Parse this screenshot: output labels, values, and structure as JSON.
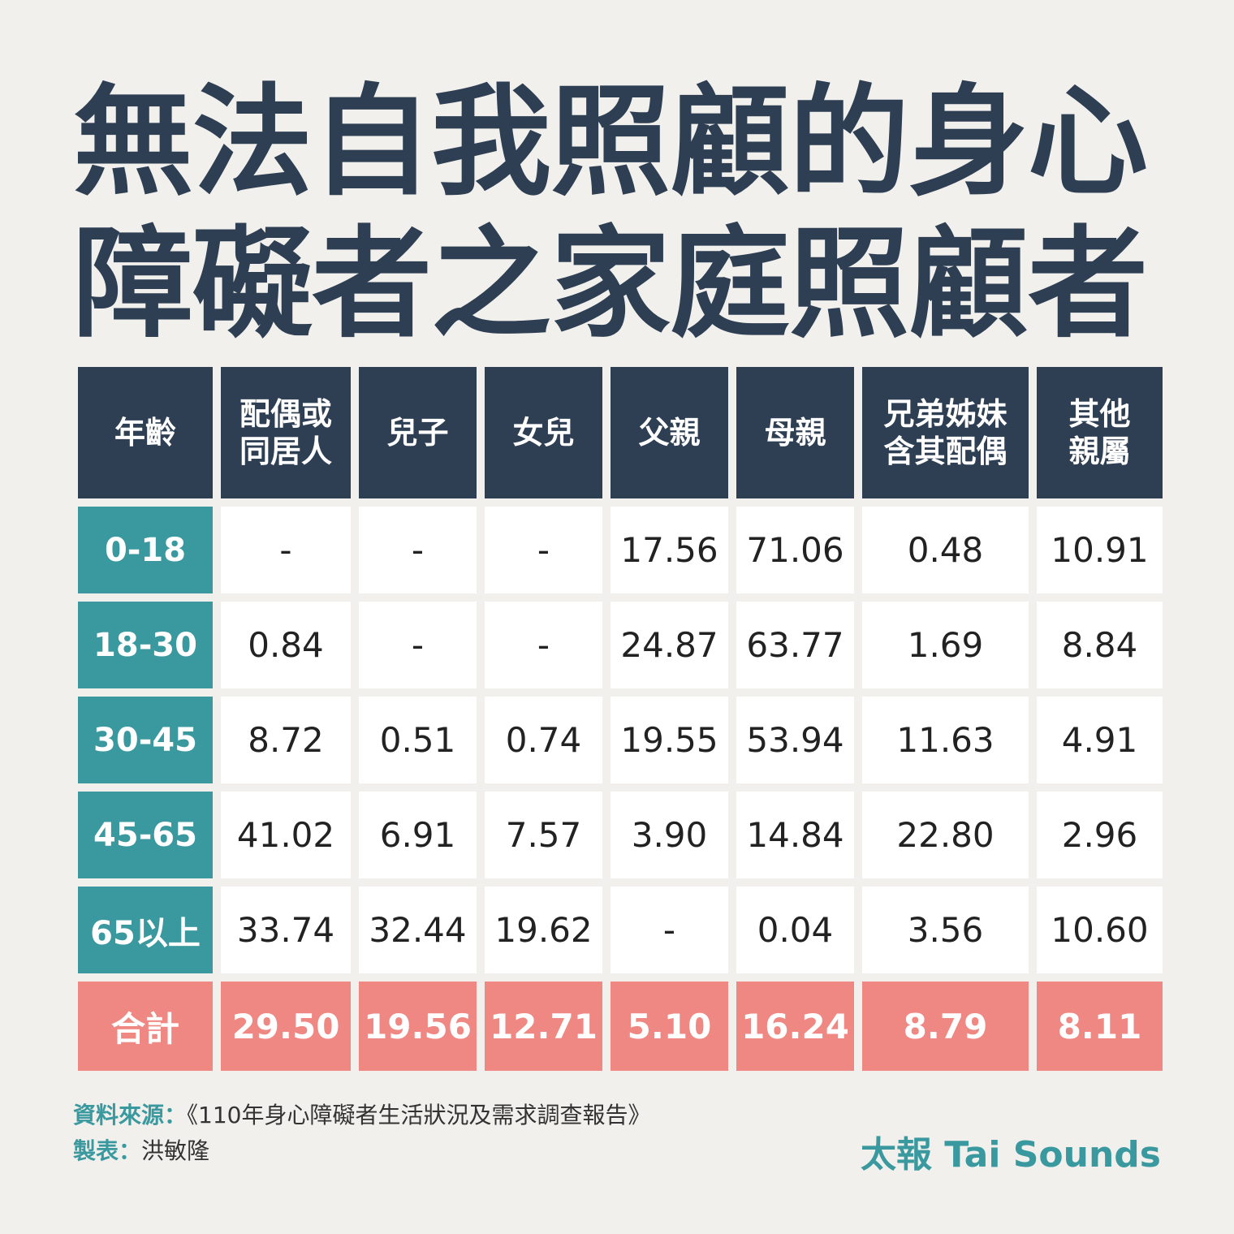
{
  "title": {
    "line1": "無法自我照顧的身心",
    "line2": "障礙者之家庭照顧者"
  },
  "colors": {
    "header": "#2e3f54",
    "age_column": "#3a999f",
    "total_row": "#ef8883",
    "background": "#f2f0ec"
  },
  "chart_data": {
    "type": "table",
    "columns": [
      "年齡",
      "配偶或\n同居人",
      "兒子",
      "女兒",
      "父親",
      "母親",
      "兄弟姊妹\n含其配偶",
      "其他\n親屬"
    ],
    "rows": [
      {
        "age": "0-18",
        "values": [
          "-",
          "-",
          "-",
          "17.56",
          "71.06",
          "0.48",
          "10.91"
        ]
      },
      {
        "age": "18-30",
        "values": [
          "0.84",
          "-",
          "-",
          "24.87",
          "63.77",
          "1.69",
          "8.84"
        ]
      },
      {
        "age": "30-45",
        "values": [
          "8.72",
          "0.51",
          "0.74",
          "19.55",
          "53.94",
          "11.63",
          "4.91"
        ]
      },
      {
        "age": "45-65",
        "values": [
          "41.02",
          "6.91",
          "7.57",
          "3.90",
          "14.84",
          "22.80",
          "2.96"
        ]
      },
      {
        "age": "65以上",
        "values": [
          "33.74",
          "32.44",
          "19.62",
          "-",
          "0.04",
          "3.56",
          "10.60"
        ]
      }
    ],
    "total": {
      "label": "合計",
      "values": [
        "29.50",
        "19.56",
        "12.71",
        "5.10",
        "16.24",
        "8.79",
        "8.11"
      ]
    }
  },
  "footer": {
    "source_label": "資料來源：",
    "source_text": "《110年身心障礙者生活狀況及需求調查報告》",
    "maker_label": "製表：",
    "maker_text": "洪敏隆"
  },
  "brand": "太報 Tai Sounds"
}
